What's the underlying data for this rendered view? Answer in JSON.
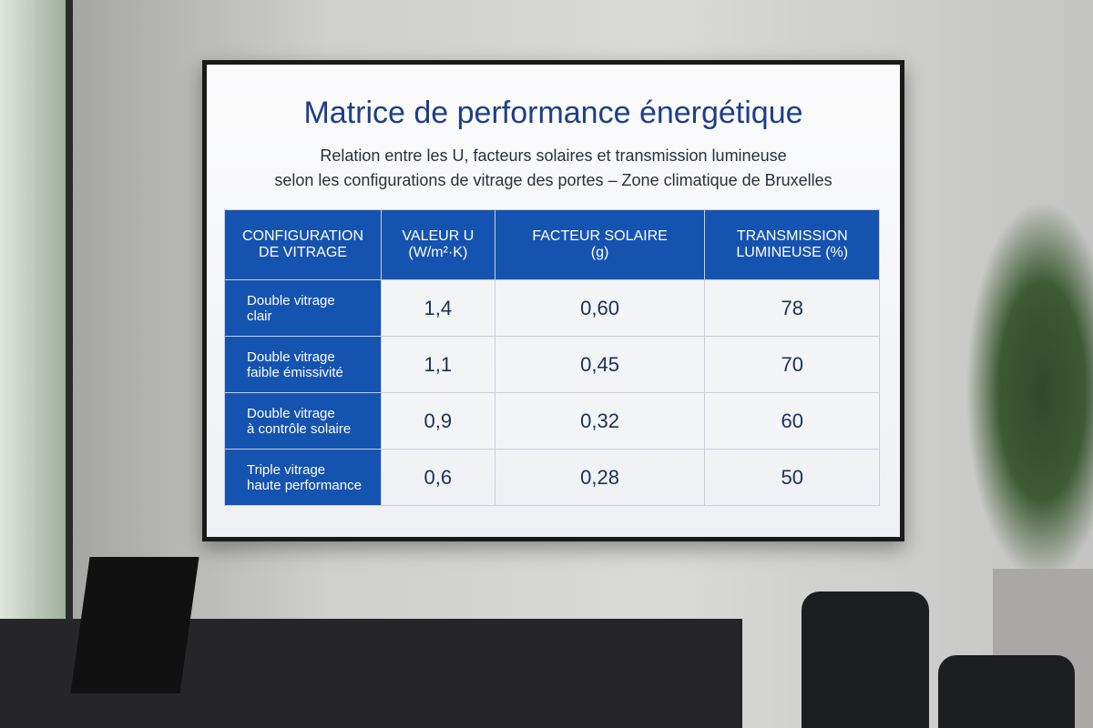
{
  "header": {
    "title": "Matrice de performance énergétique",
    "subtitle": [
      "Relation entre les U, facteurs solaires et transmission lumineuse",
      "selon les configurations de vitrage des portes – Zone climatique de Bruxelles"
    ]
  },
  "table": {
    "columns": [
      [
        "CONFIGURATION",
        "DE VITRAGE"
      ],
      [
        "VALEUR U",
        "(W/m²·K)"
      ],
      [
        "FACTEUR SOLAIRE",
        "(g)"
      ],
      [
        "TRANSMISSION",
        "LUMINEUSE (%)"
      ]
    ],
    "rows": [
      [
        [
          "Double vitrage",
          "clair"
        ],
        "1,4",
        "0,60",
        "78"
      ],
      [
        [
          "Double vitrage",
          "faible émissivité"
        ],
        "1,1",
        "0,45",
        "70"
      ],
      [
        [
          "Double vitrage",
          "à contrôle solaire"
        ],
        "0,9",
        "0,32",
        "60"
      ],
      [
        [
          "Triple vitrage",
          "haute performance"
        ],
        "0,6",
        "0,28",
        "50"
      ]
    ]
  }
}
